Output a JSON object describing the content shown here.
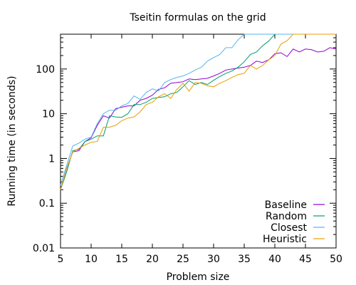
{
  "chart_data": {
    "type": "line",
    "title": "Tseitin formulas on the grid",
    "xlabel": "Problem size",
    "ylabel": "Running time (in seconds)",
    "xlim": [
      5,
      50
    ],
    "ylim": [
      0.01,
      600
    ],
    "yscale": "log",
    "grid": false,
    "legend_position": "bottom-right",
    "x_ticks": [
      5,
      10,
      15,
      20,
      25,
      30,
      35,
      40,
      45,
      50
    ],
    "x_tick_labels": [
      "5",
      "10",
      "15",
      "20",
      "25",
      "30",
      "35",
      "40",
      "45",
      "50"
    ],
    "y_ticks": [
      0.01,
      0.1,
      1,
      10,
      100
    ],
    "y_tick_labels": [
      "0.01",
      "0.1",
      "1",
      "10",
      "100"
    ],
    "x": [
      5,
      6,
      7,
      8,
      9,
      10,
      11,
      12,
      13,
      14,
      15,
      16,
      17,
      18,
      19,
      20,
      21,
      22,
      23,
      24,
      25,
      26,
      27,
      28,
      29,
      30,
      31,
      32,
      33,
      34,
      35,
      36,
      37,
      38,
      39,
      40,
      41,
      42,
      43,
      44,
      45,
      46,
      47,
      48,
      49,
      50
    ],
    "series": [
      {
        "name": "Baseline",
        "color": "#9400d3",
        "values": [
          0.2,
          0.6,
          1.4,
          1.5,
          2.4,
          2.9,
          5.5,
          9,
          8,
          13,
          14,
          15,
          15,
          20,
          22,
          26,
          35,
          38,
          48,
          50,
          52,
          60,
          58,
          60,
          62,
          70,
          80,
          95,
          100,
          105,
          110,
          120,
          150,
          140,
          160,
          220,
          230,
          190,
          280,
          240,
          280,
          270,
          240,
          250,
          300,
          280
        ]
      },
      {
        "name": "Random",
        "color": "#009e73",
        "values": [
          0.2,
          0.5,
          1.5,
          1.6,
          2.4,
          2.7,
          3.2,
          3.2,
          9,
          8.5,
          8.3,
          10,
          16,
          16,
          18,
          22,
          23,
          24,
          28,
          30,
          40,
          55,
          45,
          50,
          45,
          56,
          68,
          80,
          90,
          110,
          145,
          210,
          240,
          330,
          420,
          600,
          600,
          600,
          600,
          600,
          600,
          600,
          600,
          600,
          600,
          600
        ]
      },
      {
        "name": "Closest",
        "color": "#56b4e9",
        "values": [
          0.25,
          0.7,
          1.9,
          2.2,
          2.7,
          3,
          6,
          10,
          12,
          12,
          15,
          17,
          25,
          21,
          30,
          36,
          32,
          50,
          58,
          65,
          70,
          80,
          95,
          110,
          150,
          180,
          210,
          300,
          300,
          450,
          600,
          600,
          600,
          600,
          600,
          600,
          600,
          600,
          600,
          600,
          600,
          600,
          600,
          600,
          600,
          600
        ]
      },
      {
        "name": "Heuristic",
        "color": "#e69f00",
        "values": [
          0.2,
          0.6,
          1.4,
          1.7,
          2,
          2.3,
          2.4,
          5,
          5,
          5.5,
          7,
          8,
          8.5,
          11,
          16,
          18,
          24,
          28,
          22,
          35,
          48,
          32,
          50,
          48,
          42,
          40,
          48,
          55,
          65,
          75,
          80,
          120,
          100,
          120,
          160,
          200,
          360,
          430,
          600,
          600,
          600,
          600,
          600,
          600,
          600,
          600
        ]
      }
    ]
  }
}
